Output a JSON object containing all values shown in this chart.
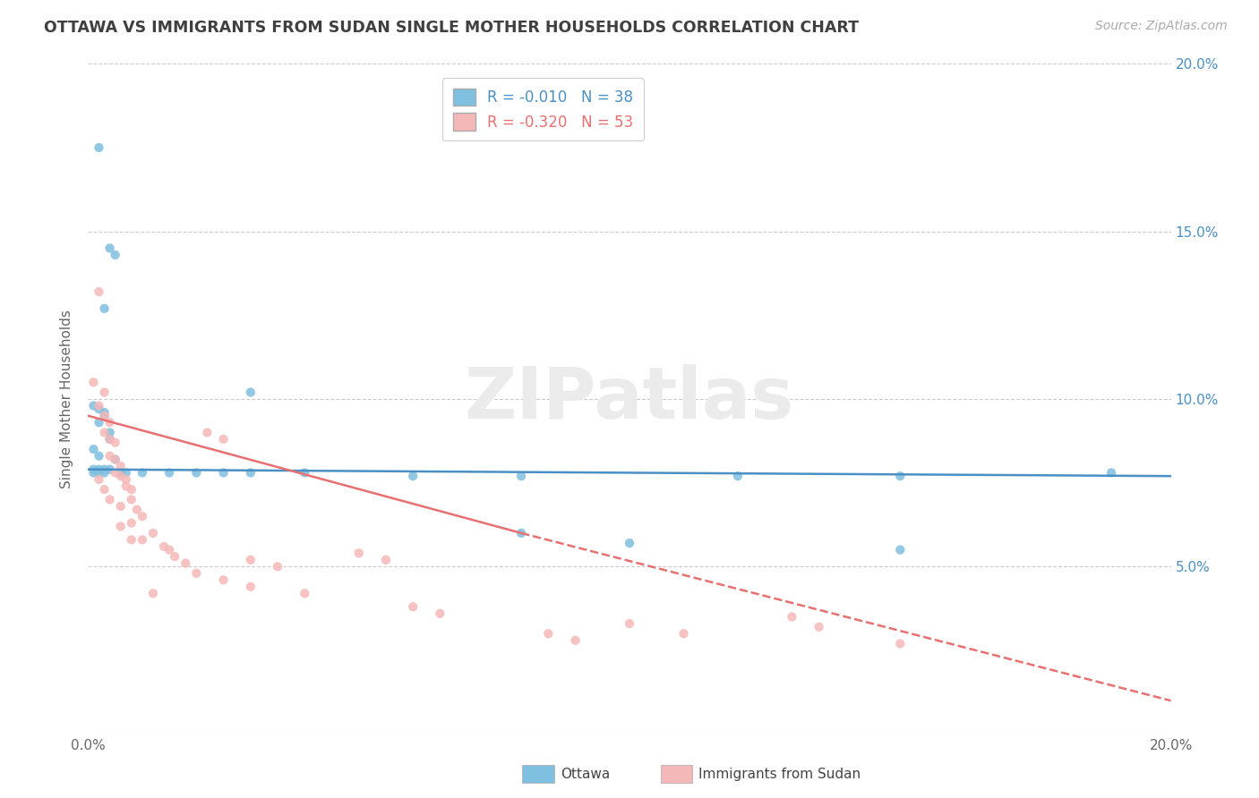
{
  "title": "OTTAWA VS IMMIGRANTS FROM SUDAN SINGLE MOTHER HOUSEHOLDS CORRELATION CHART",
  "source": "Source: ZipAtlas.com",
  "ylabel": "Single Mother Households",
  "legend_ottawa_label": "Ottawa",
  "legend_sudan_label": "Immigrants from Sudan",
  "legend_r_ottawa": "R = -0.010",
  "legend_n_ottawa": "N = 38",
  "legend_r_sudan": "R = -0.320",
  "legend_n_sudan": "N = 53",
  "xlim": [
    0.0,
    0.2
  ],
  "ylim": [
    0.0,
    0.2
  ],
  "yticks": [
    0.05,
    0.1,
    0.15,
    0.2
  ],
  "ytick_labels": [
    "5.0%",
    "10.0%",
    "15.0%",
    "20.0%"
  ],
  "xticks": [
    0.0,
    0.05,
    0.1,
    0.15,
    0.2
  ],
  "xtick_labels_show": [
    "0.0%",
    "20.0%"
  ],
  "watermark": "ZIPatlas",
  "blue_color": "#7fbfdf",
  "pink_color": "#f5b8b8",
  "blue_line_color": "#4a90c4",
  "pink_line_color": "#e87070",
  "title_color": "#404040",
  "source_color": "#999999",
  "ottawa_trendline": [
    0.0,
    0.2,
    0.079,
    0.077
  ],
  "sudan_trendline_solid": [
    0.0,
    0.08,
    0.095,
    0.06
  ],
  "sudan_trendline_dash": [
    0.08,
    0.2,
    0.06,
    0.01
  ],
  "ottawa_points": [
    [
      0.002,
      0.175
    ],
    [
      0.004,
      0.145
    ],
    [
      0.005,
      0.143
    ],
    [
      0.003,
      0.127
    ],
    [
      0.03,
      0.102
    ],
    [
      0.001,
      0.098
    ],
    [
      0.002,
      0.097
    ],
    [
      0.003,
      0.096
    ],
    [
      0.003,
      0.095
    ],
    [
      0.002,
      0.093
    ],
    [
      0.004,
      0.09
    ],
    [
      0.004,
      0.088
    ],
    [
      0.001,
      0.085
    ],
    [
      0.002,
      0.083
    ],
    [
      0.005,
      0.082
    ],
    [
      0.001,
      0.079
    ],
    [
      0.002,
      0.079
    ],
    [
      0.003,
      0.079
    ],
    [
      0.004,
      0.079
    ],
    [
      0.001,
      0.078
    ],
    [
      0.002,
      0.078
    ],
    [
      0.003,
      0.078
    ],
    [
      0.006,
      0.078
    ],
    [
      0.007,
      0.078
    ],
    [
      0.01,
      0.078
    ],
    [
      0.015,
      0.078
    ],
    [
      0.02,
      0.078
    ],
    [
      0.025,
      0.078
    ],
    [
      0.03,
      0.078
    ],
    [
      0.04,
      0.078
    ],
    [
      0.06,
      0.077
    ],
    [
      0.08,
      0.077
    ],
    [
      0.12,
      0.077
    ],
    [
      0.15,
      0.077
    ],
    [
      0.08,
      0.06
    ],
    [
      0.1,
      0.057
    ],
    [
      0.15,
      0.055
    ],
    [
      0.189,
      0.078
    ]
  ],
  "sudan_points": [
    [
      0.001,
      0.105
    ],
    [
      0.002,
      0.132
    ],
    [
      0.003,
      0.102
    ],
    [
      0.002,
      0.098
    ],
    [
      0.003,
      0.095
    ],
    [
      0.004,
      0.093
    ],
    [
      0.003,
      0.09
    ],
    [
      0.004,
      0.088
    ],
    [
      0.005,
      0.087
    ],
    [
      0.004,
      0.083
    ],
    [
      0.005,
      0.082
    ],
    [
      0.006,
      0.08
    ],
    [
      0.005,
      0.078
    ],
    [
      0.006,
      0.077
    ],
    [
      0.007,
      0.076
    ],
    [
      0.007,
      0.074
    ],
    [
      0.008,
      0.073
    ],
    [
      0.008,
      0.07
    ],
    [
      0.006,
      0.068
    ],
    [
      0.009,
      0.067
    ],
    [
      0.01,
      0.065
    ],
    [
      0.008,
      0.063
    ],
    [
      0.012,
      0.06
    ],
    [
      0.01,
      0.058
    ],
    [
      0.014,
      0.056
    ],
    [
      0.015,
      0.055
    ],
    [
      0.016,
      0.053
    ],
    [
      0.018,
      0.051
    ],
    [
      0.022,
      0.09
    ],
    [
      0.025,
      0.088
    ],
    [
      0.02,
      0.048
    ],
    [
      0.025,
      0.046
    ],
    [
      0.03,
      0.052
    ],
    [
      0.035,
      0.05
    ],
    [
      0.03,
      0.044
    ],
    [
      0.04,
      0.042
    ],
    [
      0.05,
      0.054
    ],
    [
      0.055,
      0.052
    ],
    [
      0.06,
      0.038
    ],
    [
      0.065,
      0.036
    ],
    [
      0.085,
      0.03
    ],
    [
      0.09,
      0.028
    ],
    [
      0.1,
      0.033
    ],
    [
      0.11,
      0.03
    ],
    [
      0.13,
      0.035
    ],
    [
      0.135,
      0.032
    ],
    [
      0.15,
      0.027
    ],
    [
      0.002,
      0.076
    ],
    [
      0.003,
      0.073
    ],
    [
      0.004,
      0.07
    ],
    [
      0.006,
      0.062
    ],
    [
      0.008,
      0.058
    ],
    [
      0.012,
      0.042
    ]
  ]
}
